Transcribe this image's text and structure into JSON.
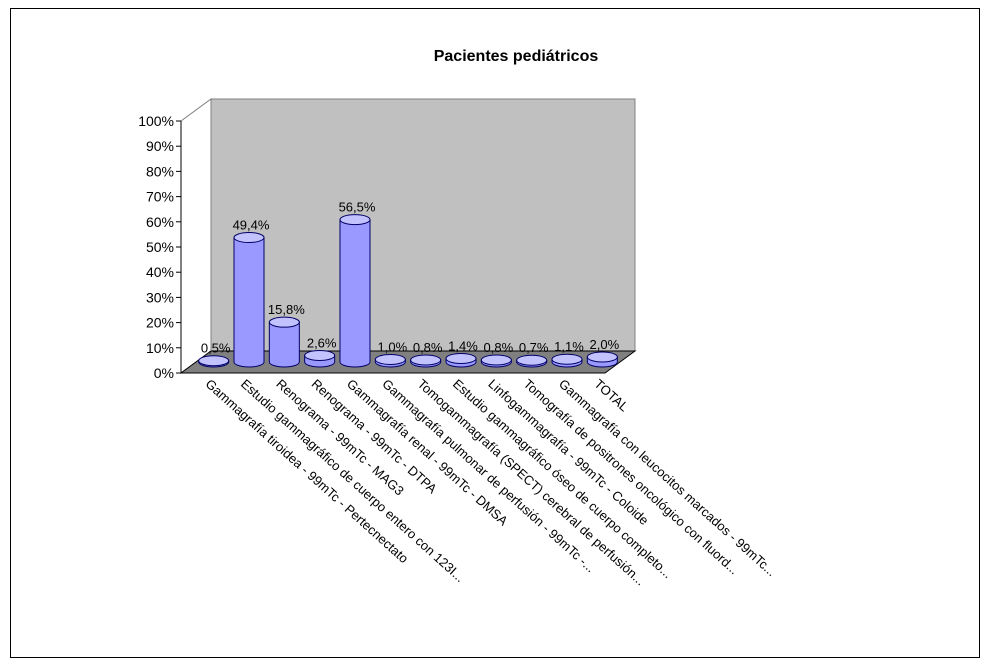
{
  "chart_data": {
    "type": "bar",
    "title": "Pacientes pediátricos",
    "xlabel": "",
    "ylabel": "",
    "ylim": [
      0,
      100
    ],
    "y_ticks": [
      "0%",
      "10%",
      "20%",
      "30%",
      "40%",
      "50%",
      "60%",
      "70%",
      "80%",
      "90%",
      "100%"
    ],
    "grid": false,
    "legend": "none",
    "categories": [
      "Gammagrafía tiroidea - 99mTc - Pertecnectato",
      "Estudio gammagráfico de cuerpo entero con 123I...",
      "Renograma - 99mTc - MAG3",
      "Renograma - 99mTc - DTPA",
      "Gammagrafía renal - 99mTc - DMSA",
      "Gammagrafía pulmonar de perfusión - 99mTc -...",
      "Tomogammagrafía (SPECT) cerebral de perfusión...",
      "Estudio gammagráfico óseo de cuerpo completo...",
      "Linfogammagrafía - 99mTc - Coloide",
      "Tomografía de positrones oncológico con fluord...",
      "Gammagrafía con leucocitos marcados - 99mTc...",
      "TOTAL"
    ],
    "values": [
      0.5,
      49.4,
      15.8,
      2.6,
      56.5,
      1.0,
      0.8,
      1.4,
      0.8,
      0.7,
      1.1,
      2.0
    ],
    "data_labels": [
      "0,5%",
      "49,4%",
      "15,8%",
      "2,6%",
      "56,5%",
      "1,0%",
      "0,8%",
      "1,4%",
      "0,8%",
      "0,7%",
      "1,1%",
      "2,0%"
    ],
    "colors": {
      "bar_front": "#9999ff",
      "bar_top": "#c2c2ff",
      "bar_outline": "#000066",
      "back_wall": "#c0c0c0",
      "floor": "#808080",
      "axis": "#000000"
    }
  }
}
